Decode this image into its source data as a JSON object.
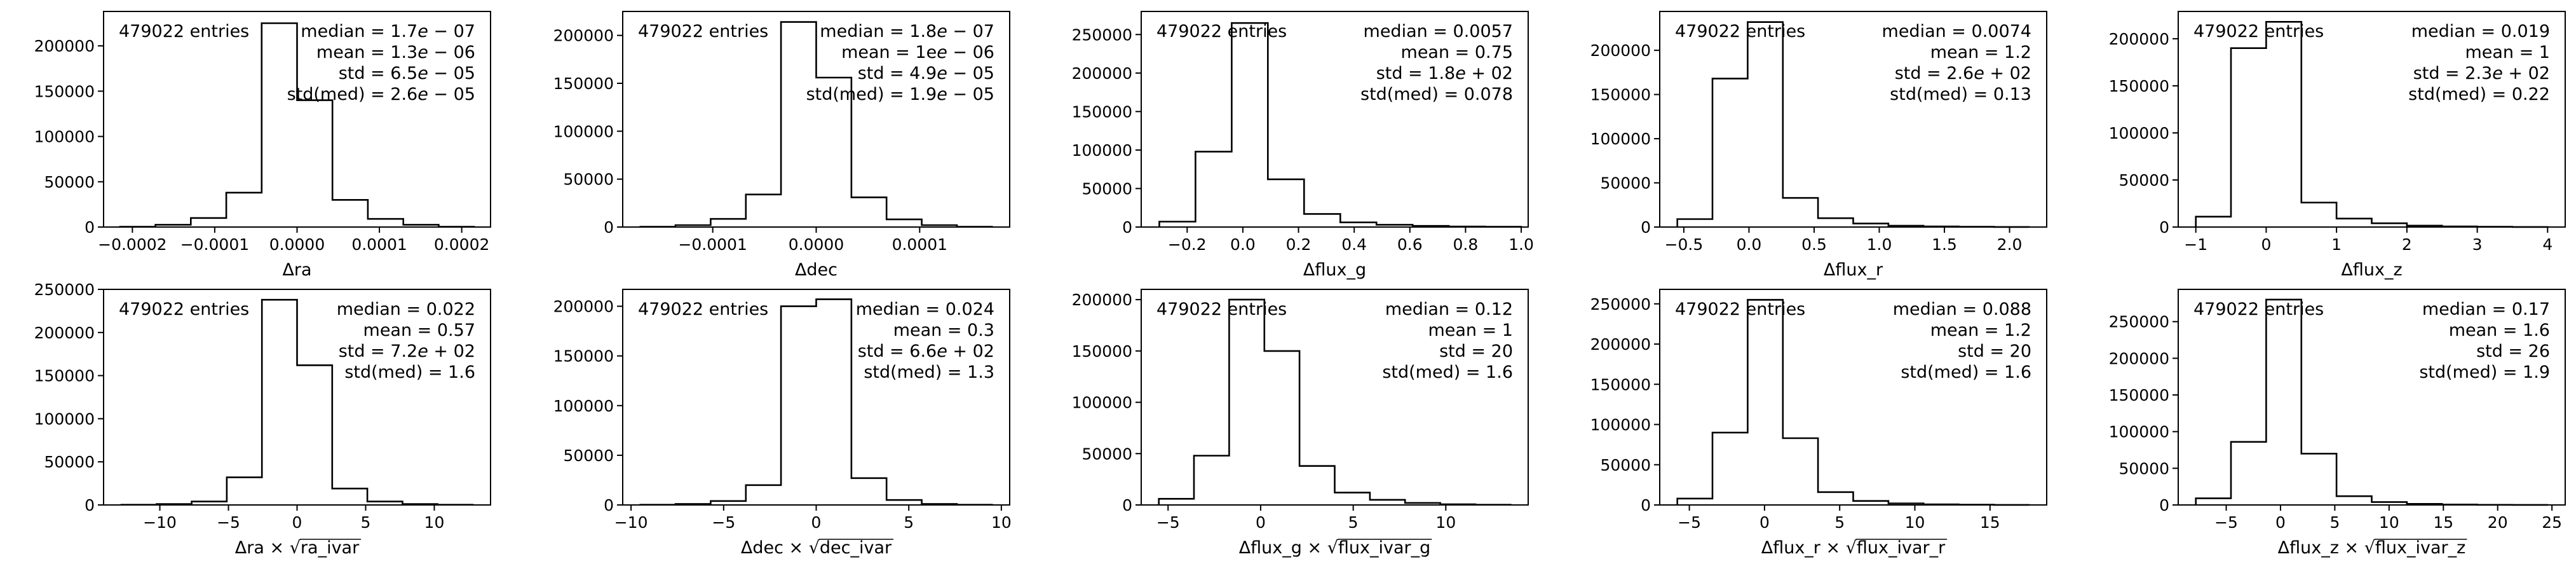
{
  "chart_data": [
    {
      "type": "bar",
      "title": "",
      "xlabel": "Δra",
      "xlabel_parts": [
        {
          "t": "Δra"
        }
      ],
      "ylabel": "",
      "bin_edges": [
        -0.000215,
        -0.000172,
        -0.000129,
        -8.6e-05,
        -4.3e-05,
        0.0,
        4.3e-05,
        8.6e-05,
        0.000129,
        0.000172,
        0.000215
      ],
      "counts": [
        300,
        2500,
        10000,
        38000,
        225000,
        140000,
        30000,
        9000,
        2500,
        300
      ],
      "xlim": [
        -0.000235,
        0.000235
      ],
      "ylim": [
        0,
        238000
      ],
      "xticks": [
        -0.0002,
        -0.0001,
        0.0,
        0.0001,
        0.0002
      ],
      "xtick_labels": [
        "−0.0002",
        "−0.0001",
        "0.0000",
        "0.0001",
        "0.0002"
      ],
      "yticks": [
        0,
        50000,
        100000,
        150000,
        200000
      ],
      "ytick_labels": [
        "0",
        "50000",
        "100000",
        "150000",
        "200000"
      ],
      "entries": "479022 entries",
      "stats": [
        {
          "label": "median",
          "val": "1.7",
          "exp": "07"
        },
        {
          "label": "mean",
          "val": "1.3",
          "exp": "06"
        },
        {
          "label": "std",
          "val": "6.5",
          "exp": "05"
        },
        {
          "label": "std(med)",
          "val": "2.6",
          "exp": "05"
        }
      ]
    },
    {
      "type": "bar",
      "title": "",
      "xlabel": "Δdec",
      "xlabel_parts": [
        {
          "t": "Δdec"
        }
      ],
      "ylabel": "",
      "bin_edges": [
        -0.00017,
        -0.000136,
        -0.000102,
        -6.8e-05,
        -3.4e-05,
        0.0,
        3.4e-05,
        6.8e-05,
        0.000102,
        0.000136,
        0.00017
      ],
      "counts": [
        300,
        2000,
        8500,
        34000,
        214000,
        156000,
        31000,
        8000,
        2000,
        300
      ],
      "xlim": [
        -0.000187,
        0.000187
      ],
      "ylim": [
        0,
        225000
      ],
      "xticks": [
        -0.0001,
        0.0,
        0.0001
      ],
      "xtick_labels": [
        "−0.0001",
        "0.0000",
        "0.0001"
      ],
      "yticks": [
        0,
        50000,
        100000,
        150000,
        200000
      ],
      "ytick_labels": [
        "0",
        "50000",
        "100000",
        "150000",
        "200000"
      ],
      "entries": "479022 entries",
      "stats": [
        {
          "label": "median",
          "val": "1.8",
          "exp": "07"
        },
        {
          "label": "mean",
          "val": "1e",
          "exp": "06"
        },
        {
          "label": "std",
          "val": "4.9",
          "exp": "05"
        },
        {
          "label": "std(med)",
          "val": "1.9",
          "exp": "05"
        }
      ]
    },
    {
      "type": "bar",
      "title": "",
      "xlabel": "Δflux_g",
      "xlabel_parts": [
        {
          "t": "Δflux_g"
        }
      ],
      "ylabel": "",
      "bin_edges": [
        -0.3,
        -0.17,
        -0.04,
        0.09,
        0.22,
        0.35,
        0.48,
        0.61,
        0.74,
        0.87,
        1.0
      ],
      "counts": [
        7000,
        98000,
        265000,
        62000,
        17000,
        6000,
        3000,
        1500,
        700,
        300
      ],
      "xlim": [
        -0.365,
        1.025
      ],
      "ylim": [
        0,
        280000
      ],
      "xticks": [
        -0.2,
        0.0,
        0.2,
        0.4,
        0.6,
        0.8,
        1.0
      ],
      "xtick_labels": [
        "−0.2",
        "0.0",
        "0.2",
        "0.4",
        "0.6",
        "0.8",
        "1.0"
      ],
      "yticks": [
        0,
        50000,
        100000,
        150000,
        200000,
        250000
      ],
      "ytick_labels": [
        "0",
        "50000",
        "100000",
        "150000",
        "200000",
        "250000"
      ],
      "entries": "479022 entries",
      "stats": [
        {
          "label": "median",
          "val": "0.0057"
        },
        {
          "label": "mean",
          "val": "0.75"
        },
        {
          "label": "std",
          "val": "1.8",
          "exp": "+02"
        },
        {
          "label": "std(med)",
          "val": "0.078"
        }
      ]
    },
    {
      "type": "bar",
      "title": "",
      "xlabel": "Δflux_r",
      "xlabel_parts": [
        {
          "t": "Δflux_r"
        }
      ],
      "ylabel": "",
      "bin_edges": [
        -0.55,
        -0.28,
        -0.01,
        0.26,
        0.53,
        0.8,
        1.07,
        1.34,
        1.61,
        1.88,
        2.15
      ],
      "counts": [
        9000,
        168000,
        232000,
        33000,
        10000,
        4000,
        1500,
        700,
        300,
        100
      ],
      "xlim": [
        -0.685,
        2.285
      ],
      "ylim": [
        0,
        244000
      ],
      "xticks": [
        -0.5,
        0.0,
        0.5,
        1.0,
        1.5,
        2.0
      ],
      "xtick_labels": [
        "−0.5",
        "0.0",
        "0.5",
        "1.0",
        "1.5",
        "2.0"
      ],
      "yticks": [
        0,
        50000,
        100000,
        150000,
        200000
      ],
      "ytick_labels": [
        "0",
        "50000",
        "100000",
        "150000",
        "200000"
      ],
      "entries": "479022 entries",
      "stats": [
        {
          "label": "median",
          "val": "0.0074"
        },
        {
          "label": "mean",
          "val": "1.2"
        },
        {
          "label": "std",
          "val": "2.6",
          "exp": "+02"
        },
        {
          "label": "std(med)",
          "val": "0.13"
        }
      ]
    },
    {
      "type": "bar",
      "title": "",
      "xlabel": "Δflux_z",
      "xlabel_parts": [
        {
          "t": "Δflux_z"
        }
      ],
      "ylabel": "",
      "bin_edges": [
        -1.0,
        -0.5,
        0.0,
        0.5,
        1.0,
        1.5,
        2.0,
        2.5,
        3.0,
        3.5,
        4.0
      ],
      "counts": [
        11000,
        190000,
        218000,
        26000,
        9000,
        4000,
        1500,
        700,
        300,
        100
      ],
      "xlim": [
        -1.25,
        4.25
      ],
      "ylim": [
        0,
        229000
      ],
      "xticks": [
        -1,
        0,
        1,
        2,
        3,
        4
      ],
      "xtick_labels": [
        "−1",
        "0",
        "1",
        "2",
        "3",
        "4"
      ],
      "yticks": [
        0,
        50000,
        100000,
        150000,
        200000
      ],
      "ytick_labels": [
        "0",
        "50000",
        "100000",
        "150000",
        "200000"
      ],
      "entries": "479022 entries",
      "stats": [
        {
          "label": "median",
          "val": "0.019"
        },
        {
          "label": "mean",
          "val": "1"
        },
        {
          "label": "std",
          "val": "2.3",
          "exp": "+02"
        },
        {
          "label": "std(med)",
          "val": "0.22"
        }
      ]
    },
    {
      "type": "bar",
      "title": "",
      "xlabel": "Δra × √ra_ivar",
      "xlabel_parts": [
        {
          "t": "Δra × "
        },
        {
          "t": "ra_ivar",
          "sqrt": true
        }
      ],
      "ylabel": "",
      "bin_edges": [
        -12.8,
        -10.24,
        -7.68,
        -5.12,
        -2.56,
        0.0,
        2.56,
        5.12,
        7.68,
        10.24,
        12.8
      ],
      "counts": [
        200,
        1000,
        4000,
        32000,
        238000,
        162000,
        19000,
        4000,
        1000,
        200
      ],
      "xlim": [
        -14.1,
        14.1
      ],
      "ylim": [
        0,
        250000
      ],
      "xticks": [
        -10,
        -5,
        0,
        5,
        10
      ],
      "xtick_labels": [
        "−10",
        "−5",
        "0",
        "5",
        "10"
      ],
      "yticks": [
        0,
        50000,
        100000,
        150000,
        200000,
        250000
      ],
      "ytick_labels": [
        "0",
        "50000",
        "100000",
        "150000",
        "200000",
        "250000"
      ],
      "entries": "479022 entries",
      "stats": [
        {
          "label": "median",
          "val": "0.022"
        },
        {
          "label": "mean",
          "val": "0.57"
        },
        {
          "label": "std",
          "val": "7.2",
          "exp": "+02"
        },
        {
          "label": "std(med)",
          "val": "1.6"
        }
      ]
    },
    {
      "type": "bar",
      "title": "",
      "xlabel": "Δdec × √dec_ivar",
      "xlabel_parts": [
        {
          "t": "Δdec × "
        },
        {
          "t": "dec_ivar",
          "sqrt": true
        }
      ],
      "ylabel": "",
      "bin_edges": [
        -9.5,
        -7.6,
        -5.7,
        -3.8,
        -1.9,
        0.0,
        1.9,
        3.8,
        5.7,
        7.6,
        9.5
      ],
      "counts": [
        200,
        1000,
        4000,
        20000,
        200000,
        207000,
        27000,
        5000,
        1000,
        200
      ],
      "xlim": [
        -10.45,
        10.45
      ],
      "ylim": [
        0,
        217000
      ],
      "xticks": [
        -10,
        -5,
        0,
        5,
        10
      ],
      "xtick_labels": [
        "−10",
        "−5",
        "0",
        "5",
        "10"
      ],
      "yticks": [
        0,
        50000,
        100000,
        150000,
        200000
      ],
      "ytick_labels": [
        "0",
        "50000",
        "100000",
        "150000",
        "200000"
      ],
      "entries": "479022 entries",
      "stats": [
        {
          "label": "median",
          "val": "0.024"
        },
        {
          "label": "mean",
          "val": "0.3"
        },
        {
          "label": "std",
          "val": "6.6",
          "exp": "+02"
        },
        {
          "label": "std(med)",
          "val": "1.3"
        }
      ]
    },
    {
      "type": "bar",
      "title": "",
      "xlabel": "Δflux_g × √flux_ivar_g",
      "xlabel_parts": [
        {
          "t": "Δflux_g × "
        },
        {
          "t": "flux_ivar_g",
          "sqrt": true
        }
      ],
      "ylabel": "",
      "bin_edges": [
        -5.5,
        -3.6,
        -1.7,
        0.2,
        2.1,
        4.0,
        5.9,
        7.8,
        9.7,
        11.6,
        13.5
      ],
      "counts": [
        6000,
        48000,
        200000,
        150000,
        38000,
        12000,
        5000,
        2000,
        700,
        200
      ],
      "xlim": [
        -6.45,
        14.45
      ],
      "ylim": [
        0,
        210000
      ],
      "xticks": [
        -5,
        0,
        5,
        10
      ],
      "xtick_labels": [
        "−5",
        "0",
        "5",
        "10"
      ],
      "yticks": [
        0,
        50000,
        100000,
        150000,
        200000
      ],
      "ytick_labels": [
        "0",
        "50000",
        "100000",
        "150000",
        "200000"
      ],
      "entries": "479022 entries",
      "stats": [
        {
          "label": "median",
          "val": "0.12"
        },
        {
          "label": "mean",
          "val": "1"
        },
        {
          "label": "std",
          "val": "20"
        },
        {
          "label": "std(med)",
          "val": "1.6"
        }
      ]
    },
    {
      "type": "bar",
      "title": "",
      "xlabel": "Δflux_r × √flux_ivar_r",
      "xlabel_parts": [
        {
          "t": "Δflux_r × "
        },
        {
          "t": "flux_ivar_r",
          "sqrt": true
        }
      ],
      "ylabel": "",
      "bin_edges": [
        -5.8,
        -3.46,
        -1.12,
        1.22,
        3.56,
        5.9,
        8.24,
        10.58,
        12.92,
        15.26,
        17.6
      ],
      "counts": [
        8000,
        90000,
        255000,
        83000,
        16000,
        5000,
        2000,
        800,
        300,
        100
      ],
      "xlim": [
        -6.97,
        18.77
      ],
      "ylim": [
        0,
        268000
      ],
      "xticks": [
        -5,
        0,
        5,
        10,
        15
      ],
      "xtick_labels": [
        "−5",
        "0",
        "5",
        "10",
        "15"
      ],
      "yticks": [
        0,
        50000,
        100000,
        150000,
        200000,
        250000
      ],
      "ytick_labels": [
        "0",
        "50000",
        "100000",
        "150000",
        "200000",
        "250000"
      ],
      "entries": "479022 entries",
      "stats": [
        {
          "label": "median",
          "val": "0.088"
        },
        {
          "label": "mean",
          "val": "1.2"
        },
        {
          "label": "std",
          "val": "20"
        },
        {
          "label": "std(med)",
          "val": "1.6"
        }
      ]
    },
    {
      "type": "bar",
      "title": "",
      "xlabel": "Δflux_z × √flux_ivar_z",
      "xlabel_parts": [
        {
          "t": "Δflux_z × "
        },
        {
          "t": "flux_ivar_z",
          "sqrt": true
        }
      ],
      "ylabel": "",
      "bin_edges": [
        -7.8,
        -4.56,
        -1.32,
        1.92,
        5.16,
        8.4,
        11.64,
        14.88,
        18.12,
        21.36,
        24.6
      ],
      "counts": [
        9000,
        86000,
        280000,
        70000,
        12000,
        4000,
        1500,
        600,
        200,
        100
      ],
      "xlim": [
        -9.42,
        26.22
      ],
      "ylim": [
        0,
        294000
      ],
      "xticks": [
        -5,
        0,
        5,
        10,
        15,
        20,
        25
      ],
      "xtick_labels": [
        "−5",
        "0",
        "5",
        "10",
        "15",
        "20",
        "25"
      ],
      "yticks": [
        0,
        50000,
        100000,
        150000,
        200000,
        250000
      ],
      "ytick_labels": [
        "0",
        "50000",
        "100000",
        "150000",
        "200000",
        "250000"
      ],
      "entries": "479022 entries",
      "stats": [
        {
          "label": "median",
          "val": "0.17"
        },
        {
          "label": "mean",
          "val": "1.6"
        },
        {
          "label": "std",
          "val": "26"
        },
        {
          "label": "std(med)",
          "val": "1.9"
        }
      ]
    }
  ]
}
